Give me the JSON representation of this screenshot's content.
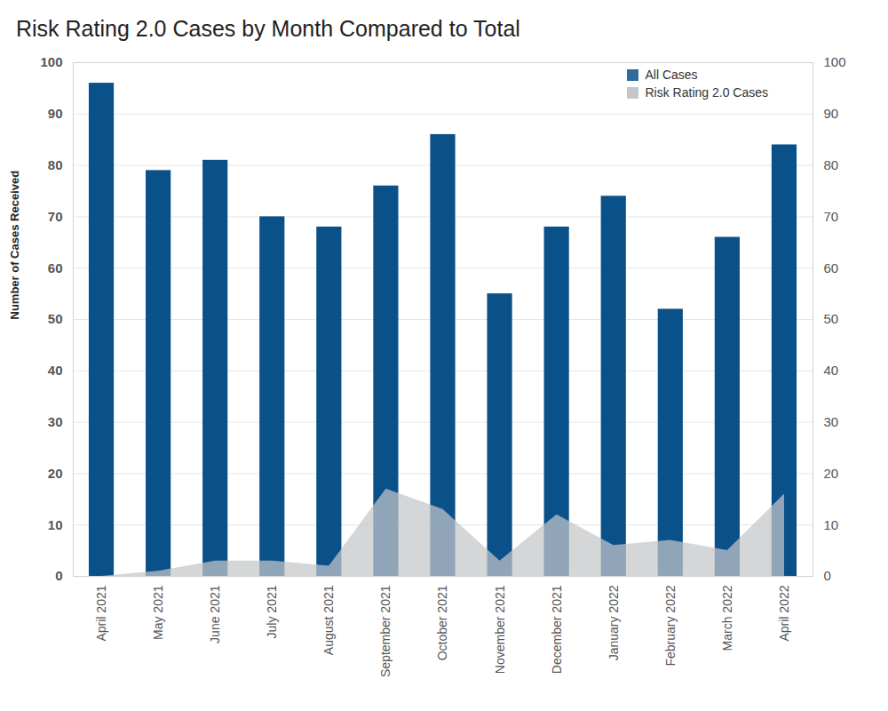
{
  "chart_data": {
    "type": "bar",
    "title": "Risk Rating 2.0 Cases by Month Compared to Total",
    "y_label": "Number of Cases Received",
    "categories": [
      "April 2021",
      "May 2021",
      "June 2021",
      "July 2021",
      "August 2021",
      "September 2021",
      "October 2021",
      "November 2021",
      "December 2021",
      "January 2022",
      "February 2022",
      "March 2022",
      "April 2022"
    ],
    "series": [
      {
        "name": "All Cases",
        "type": "bar",
        "color": "#0b5189",
        "values": [
          96,
          79,
          81,
          70,
          68,
          76,
          86,
          55,
          68,
          74,
          52,
          66,
          84
        ]
      },
      {
        "name": "Risk Rating 2.0 Cases",
        "type": "area",
        "color": "#c4c6c9",
        "values": [
          0,
          1,
          3,
          3,
          2,
          17,
          13,
          3,
          12,
          6,
          7,
          5,
          16
        ]
      }
    ],
    "ylim": [
      0,
      100
    ],
    "yticks": [
      0,
      10,
      20,
      30,
      40,
      50,
      60,
      70,
      80,
      90,
      100
    ],
    "grid": true,
    "legend": "top-right"
  }
}
